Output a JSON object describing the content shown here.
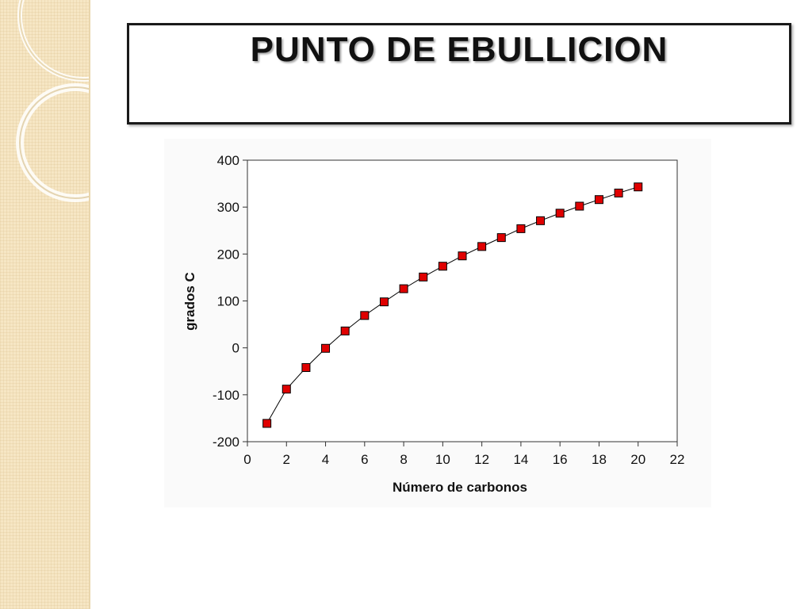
{
  "slide": {
    "title": "PUNTO DE EBULLICION"
  },
  "colors": {
    "marker_fill": "#e00000",
    "line": "#000000",
    "side_band": "#f6e6c4"
  },
  "chart_data": {
    "type": "scatter",
    "title": "",
    "xlabel": "Número de carbonos",
    "ylabel": "grados C",
    "xlim": [
      0,
      22
    ],
    "ylim": [
      -200,
      400
    ],
    "xticks": [
      0,
      2,
      4,
      6,
      8,
      10,
      12,
      14,
      16,
      18,
      20,
      22
    ],
    "yticks": [
      -200,
      -100,
      0,
      100,
      200,
      300,
      400
    ],
    "grid": false,
    "legend": "none",
    "connected": true,
    "series": [
      {
        "x": [
          1,
          2,
          3,
          4,
          5,
          6,
          7,
          8,
          9,
          10,
          11,
          12,
          13,
          14,
          15,
          16,
          17,
          18,
          19,
          20
        ],
        "values": [
          -161,
          -88,
          -42,
          -1,
          36,
          69,
          98,
          126,
          151,
          174,
          196,
          216,
          235,
          254,
          271,
          287,
          302,
          316,
          330,
          343
        ]
      }
    ]
  }
}
